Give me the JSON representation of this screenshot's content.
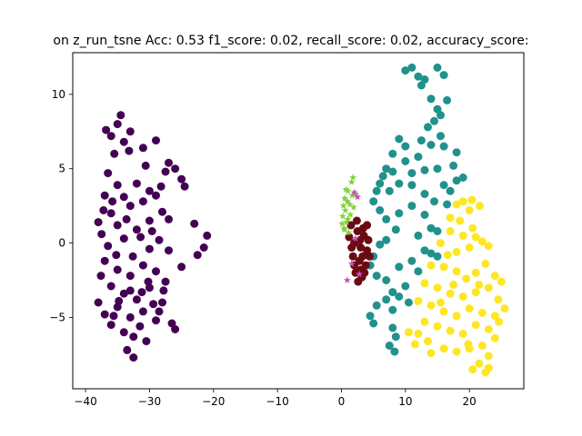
{
  "chart_data": {
    "type": "scatter",
    "title": "on z_run_tsne  Acc: 0.53 f1_score: 0.02, recall_score: 0.02, accuracy_score:",
    "xlabel": "",
    "ylabel": "",
    "xlim": [
      -42,
      28.5
    ],
    "ylim": [
      -9.8,
      12.8
    ],
    "xticks": [
      -40,
      -30,
      -20,
      -10,
      0,
      10,
      20
    ],
    "yticks": [
      -5,
      0,
      5,
      10
    ],
    "xtick_labels": [
      "−40",
      "−30",
      "−20",
      "−10",
      "0",
      "10",
      "20"
    ],
    "ytick_labels": [
      "−5",
      "0",
      "5",
      "10"
    ],
    "grid": false,
    "series": [
      {
        "color": "#440154",
        "marker": "circle",
        "values": [
          [
            -36,
            7.2
          ],
          [
            -35,
            8.0
          ],
          [
            -34,
            6.8
          ],
          [
            -33,
            7.5
          ],
          [
            -35.5,
            6.0
          ],
          [
            -31,
            6.4
          ],
          [
            -29,
            6.9
          ],
          [
            -27,
            5.4
          ],
          [
            -26,
            5.0
          ],
          [
            -25,
            4.3
          ],
          [
            -24.5,
            3.8
          ],
          [
            -27.5,
            4.8
          ],
          [
            -36.5,
            4.7
          ],
          [
            -35,
            3.9
          ],
          [
            -34,
            3.1
          ],
          [
            -32,
            4.0
          ],
          [
            -30,
            3.5
          ],
          [
            -29,
            3.2
          ],
          [
            -37,
            3.2
          ],
          [
            -36,
            2.0
          ],
          [
            -35,
            1.2
          ],
          [
            -33,
            2.5
          ],
          [
            -31,
            2.8
          ],
          [
            -30,
            1.5
          ],
          [
            -28,
            2.1
          ],
          [
            -27,
            1.6
          ],
          [
            -38,
            1.4
          ],
          [
            -37.5,
            0.6
          ],
          [
            -36.5,
            -0.2
          ],
          [
            -34,
            0.3
          ],
          [
            -32,
            0.9
          ],
          [
            -30,
            -0.4
          ],
          [
            -28.5,
            0.2
          ],
          [
            -27,
            -0.5
          ],
          [
            -23,
            1.3
          ],
          [
            -21,
            0.5
          ],
          [
            -21.5,
            -0.3
          ],
          [
            -22.5,
            -0.8
          ],
          [
            -25,
            -1.6
          ],
          [
            -37,
            -1.2
          ],
          [
            -35,
            -1.8
          ],
          [
            -33,
            -2.2
          ],
          [
            -31,
            -1.5
          ],
          [
            -29,
            -1.9
          ],
          [
            -27.5,
            -2.6
          ],
          [
            -36,
            -2.9
          ],
          [
            -34,
            -3.4
          ],
          [
            -32,
            -3.8
          ],
          [
            -30,
            -3.0
          ],
          [
            -28,
            -4.0
          ],
          [
            -38,
            -4.0
          ],
          [
            -37,
            -4.8
          ],
          [
            -35,
            -4.3
          ],
          [
            -33,
            -5.0
          ],
          [
            -31,
            -4.6
          ],
          [
            -29,
            -5.2
          ],
          [
            -26.5,
            -5.4
          ],
          [
            -26,
            -5.8
          ],
          [
            -34,
            -6.0
          ],
          [
            -32.5,
            -6.3
          ],
          [
            -33.5,
            -7.2
          ],
          [
            -32.5,
            -7.7
          ],
          [
            -31.5,
            -5.6
          ],
          [
            -36,
            -5.5
          ],
          [
            -30.5,
            -6.6
          ],
          [
            -28.5,
            -4.6
          ],
          [
            -36.8,
            7.6
          ],
          [
            -34.5,
            8.6
          ],
          [
            -33.2,
            6.2
          ],
          [
            -30.6,
            5.2
          ],
          [
            -28.2,
            3.8
          ],
          [
            -35.8,
            2.8
          ],
          [
            -33.6,
            1.6
          ],
          [
            -31.4,
            0.4
          ],
          [
            -29.6,
            0.8
          ],
          [
            -35.2,
            -0.8
          ],
          [
            -32.6,
            -0.9
          ],
          [
            -30.2,
            -2.6
          ],
          [
            -37.6,
            -2.2
          ],
          [
            -34.8,
            -3.9
          ],
          [
            -33.0,
            -3.2
          ],
          [
            -31.2,
            -3.3
          ],
          [
            -35.6,
            -4.9
          ],
          [
            -29.4,
            -4.1
          ],
          [
            -27.8,
            -3.2
          ],
          [
            -37.2,
            2.2
          ]
        ]
      },
      {
        "color": "#21918c",
        "marker": "circle",
        "values": [
          [
            10,
            11.6
          ],
          [
            11,
            11.8
          ],
          [
            13,
            11.0
          ],
          [
            15,
            11.8
          ],
          [
            16,
            11.3
          ],
          [
            12.5,
            10.6
          ],
          [
            14,
            9.7
          ],
          [
            15,
            9.0
          ],
          [
            16.5,
            9.6
          ],
          [
            14.5,
            8.2
          ],
          [
            13.5,
            7.8
          ],
          [
            15.5,
            7.2
          ],
          [
            16,
            6.5
          ],
          [
            14,
            6.6
          ],
          [
            12.5,
            6.9
          ],
          [
            18,
            6.1
          ],
          [
            9,
            7.0
          ],
          [
            10,
            6.5
          ],
          [
            8,
            6.0
          ],
          [
            7,
            5.0
          ],
          [
            6.5,
            4.5
          ],
          [
            8,
            4.8
          ],
          [
            10,
            5.5
          ],
          [
            11,
            4.7
          ],
          [
            12,
            5.8
          ],
          [
            13,
            4.9
          ],
          [
            15,
            5.0
          ],
          [
            16,
            3.9
          ],
          [
            17,
            3.5
          ],
          [
            18,
            4.2
          ],
          [
            19,
            4.4
          ],
          [
            6,
            4.0
          ],
          [
            7.5,
            3.5
          ],
          [
            9,
            4.0
          ],
          [
            11,
            3.9
          ],
          [
            13,
            3.3
          ],
          [
            14.5,
            2.8
          ],
          [
            16.5,
            2.6
          ],
          [
            5.5,
            3.5
          ],
          [
            5,
            2.8
          ],
          [
            6,
            2.2
          ],
          [
            7,
            1.6
          ],
          [
            9,
            2.0
          ],
          [
            11,
            2.5
          ],
          [
            13,
            1.9
          ],
          [
            14,
            1.0
          ],
          [
            15,
            0.8
          ],
          [
            12,
            0.5
          ],
          [
            8.5,
            0.9
          ],
          [
            7,
            0.2
          ],
          [
            6,
            -0.1
          ],
          [
            5,
            -0.9
          ],
          [
            4.5,
            -1.5
          ],
          [
            5.5,
            -2.2
          ],
          [
            7,
            -2.5
          ],
          [
            9,
            -1.6
          ],
          [
            11,
            -1.2
          ],
          [
            13,
            -0.5
          ],
          [
            14,
            -0.7
          ],
          [
            15,
            -0.9
          ],
          [
            12,
            -1.9
          ],
          [
            10,
            -2.9
          ],
          [
            8,
            -3.3
          ],
          [
            7,
            -3.8
          ],
          [
            9,
            -3.6
          ],
          [
            10.5,
            -4.0
          ],
          [
            5.5,
            -4.2
          ],
          [
            4.5,
            -4.9
          ],
          [
            5,
            -5.4
          ],
          [
            8,
            -4.5
          ],
          [
            8,
            -5.7
          ],
          [
            8.5,
            -6.3
          ],
          [
            7.5,
            -6.9
          ],
          [
            8.3,
            -7.3
          ],
          [
            15.5,
            8.6
          ],
          [
            12,
            11.2
          ],
          [
            17.5,
            5.2
          ]
        ]
      },
      {
        "color": "#fde725",
        "marker": "circle",
        "values": [
          [
            18,
            2.6
          ],
          [
            19,
            2.8
          ],
          [
            20,
            2.2
          ],
          [
            17,
            1.7
          ],
          [
            18.5,
            1.5
          ],
          [
            17,
            0.8
          ],
          [
            19,
            0.5
          ],
          [
            20.5,
            1.0
          ],
          [
            21,
            0.4
          ],
          [
            15.5,
            0.0
          ],
          [
            18,
            -0.6
          ],
          [
            20,
            -0.3
          ],
          [
            22,
            0.1
          ],
          [
            23,
            -0.2
          ],
          [
            14,
            -1.5
          ],
          [
            16,
            -1.6
          ],
          [
            18,
            -1.9
          ],
          [
            19.5,
            -2.4
          ],
          [
            21,
            -2.0
          ],
          [
            22.5,
            -1.4
          ],
          [
            24,
            -2.2
          ],
          [
            25,
            -2.6
          ],
          [
            13,
            -2.7
          ],
          [
            15,
            -3.0
          ],
          [
            17,
            -3.4
          ],
          [
            19,
            -3.6
          ],
          [
            21,
            -3.3
          ],
          [
            23,
            -3.0
          ],
          [
            24.5,
            -3.8
          ],
          [
            12,
            -3.9
          ],
          [
            14,
            -4.2
          ],
          [
            16,
            -4.6
          ],
          [
            18,
            -4.9
          ],
          [
            20,
            -4.4
          ],
          [
            22,
            -4.7
          ],
          [
            24,
            -4.9
          ],
          [
            25.5,
            -4.4
          ],
          [
            13,
            -5.3
          ],
          [
            15,
            -5.6
          ],
          [
            17,
            -5.9
          ],
          [
            19,
            -6.1
          ],
          [
            21,
            -5.5
          ],
          [
            23,
            -5.8
          ],
          [
            24,
            -6.4
          ],
          [
            12,
            -6.1
          ],
          [
            13.5,
            -6.6
          ],
          [
            16,
            -7.1
          ],
          [
            18,
            -7.3
          ],
          [
            20,
            -7.1
          ],
          [
            22,
            -6.9
          ],
          [
            23,
            -7.6
          ],
          [
            21.5,
            -8.1
          ],
          [
            23,
            -8.4
          ],
          [
            22.5,
            -8.7
          ],
          [
            20.5,
            -8.5
          ],
          [
            14,
            -7.4
          ],
          [
            11.5,
            -6.8
          ],
          [
            10.5,
            -6.0
          ],
          [
            17.5,
            -2.8
          ],
          [
            21.5,
            -2.8
          ],
          [
            15.5,
            -4.0
          ],
          [
            19.8,
            -6.8
          ],
          [
            24.6,
            -5.3
          ],
          [
            16.6,
            -0.8
          ],
          [
            21.6,
            2.5
          ],
          [
            20.4,
            2.9
          ]
        ]
      },
      {
        "color": "#6b0a12",
        "marker": "circle",
        "values": [
          [
            1.5,
            1.2
          ],
          [
            2.5,
            0.8
          ],
          [
            3.5,
            0.5
          ],
          [
            4.2,
            0.2
          ],
          [
            2,
            0.0
          ],
          [
            3,
            -0.3
          ],
          [
            4,
            -0.5
          ],
          [
            1.8,
            -0.9
          ],
          [
            2.8,
            -1.2
          ],
          [
            3.8,
            -1.5
          ],
          [
            2.2,
            -2.0
          ],
          [
            3.2,
            -2.3
          ],
          [
            2.6,
            -2.6
          ],
          [
            3.6,
            -2.0
          ],
          [
            1.6,
            -0.3
          ],
          [
            4.4,
            -0.9
          ],
          [
            2.4,
            1.5
          ],
          [
            3.4,
            1.0
          ],
          [
            1.2,
            0.4
          ],
          [
            3.0,
            -1.8
          ],
          [
            2.0,
            -1.5
          ],
          [
            4.0,
            1.2
          ],
          [
            2.9,
            0.2
          ],
          [
            3.3,
            -0.9
          ]
        ]
      },
      {
        "color": "#83d13a",
        "marker": "star",
        "values": [
          [
            0.5,
            3.0
          ],
          [
            1.0,
            3.5
          ],
          [
            1.6,
            4.1
          ],
          [
            1.3,
            2.6
          ],
          [
            0.6,
            2.2
          ],
          [
            0.2,
            1.8
          ],
          [
            0.8,
            1.4
          ],
          [
            0.4,
            1.0
          ],
          [
            1.1,
            0.7
          ],
          [
            0.9,
            2.8
          ],
          [
            1.7,
            3.2
          ],
          [
            0.3,
            2.5
          ],
          [
            1.4,
            1.9
          ],
          [
            0.7,
            3.6
          ],
          [
            0.1,
            1.3
          ],
          [
            1.8,
            4.4
          ],
          [
            1.0,
            1.6
          ],
          [
            0.5,
            0.9
          ],
          [
            1.9,
            2.4
          ],
          [
            2.2,
            3.3
          ]
        ]
      },
      {
        "color": "#c84fc8",
        "marker": "star",
        "values": [
          [
            2.0,
            3.4
          ],
          [
            2.5,
            3.1
          ],
          [
            2.2,
            0.3
          ],
          [
            1.6,
            -1.4
          ],
          [
            2.8,
            -2.1
          ],
          [
            0.9,
            -2.5
          ]
        ]
      }
    ]
  }
}
